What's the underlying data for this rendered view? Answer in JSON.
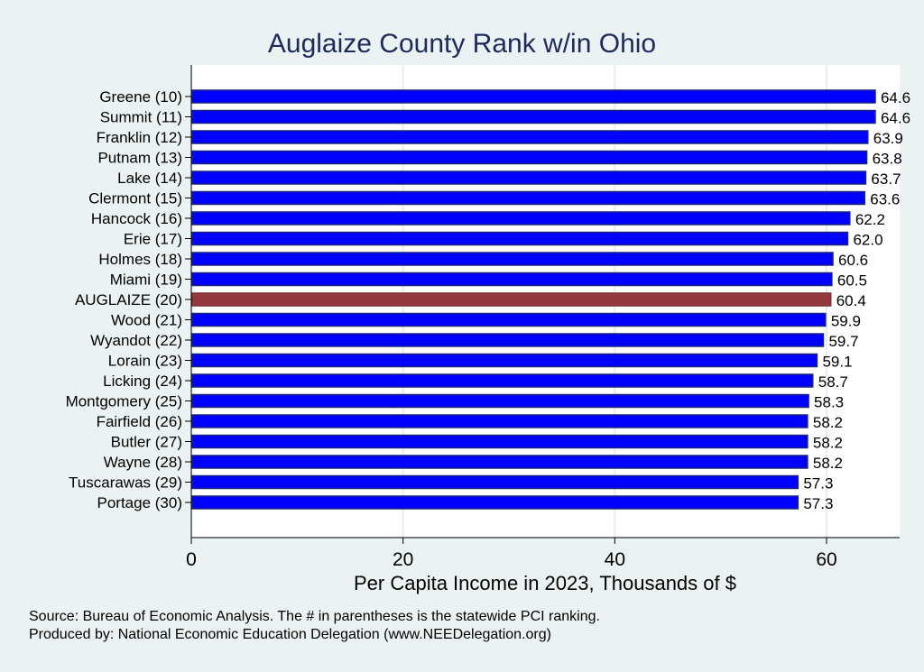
{
  "chart_data": {
    "type": "bar",
    "orientation": "horizontal",
    "title": "Auglaize County Rank w/in Ohio",
    "xlabel": "Per Capita Income in 2023, Thousands of $",
    "ylabel": "",
    "xlim": [
      0,
      67
    ],
    "xticks": [
      0,
      20,
      40,
      60
    ],
    "grid": true,
    "categories": [
      "Greene (10)",
      "Summit (11)",
      "Franklin (12)",
      "Putnam (13)",
      "Lake (14)",
      "Clermont (15)",
      "Hancock (16)",
      "Erie (17)",
      "Holmes (18)",
      "Miami (19)",
      "AUGLAIZE (20)",
      "Wood (21)",
      "Wyandot (22)",
      "Lorain (23)",
      "Licking (24)",
      "Montgomery (25)",
      "Fairfield (26)",
      "Butler (27)",
      "Wayne (28)",
      "Tuscarawas (29)",
      "Portage (30)"
    ],
    "values": [
      64.6,
      64.6,
      63.9,
      63.8,
      63.7,
      63.6,
      62.2,
      62.0,
      60.6,
      60.5,
      60.4,
      59.9,
      59.7,
      59.1,
      58.7,
      58.3,
      58.2,
      58.2,
      58.2,
      57.3,
      57.3
    ],
    "value_labels": [
      "64.6",
      "64.6",
      "63.9",
      "63.8",
      "63.7",
      "63.6",
      "62.2",
      "62.0",
      "60.6",
      "60.5",
      "60.4",
      "59.9",
      "59.7",
      "59.1",
      "58.7",
      "58.3",
      "58.2",
      "58.2",
      "58.2",
      "57.3",
      "57.3"
    ],
    "highlight": "AUGLAIZE (20)",
    "colors": {
      "bar": "#0000ff",
      "bar_border": "#1a237e",
      "highlight": "#943a3e",
      "background": "#eaf2f3",
      "plot": "#ffffff",
      "grid": "#e6eef0",
      "title": "#1e2a5a"
    }
  },
  "notes": [
    "Source: Bureau of Economic Analysis. The # in parentheses is the statewide PCI ranking.",
    "Produced by: National Economic Education Delegation (www.NEEDelegation.org)"
  ]
}
